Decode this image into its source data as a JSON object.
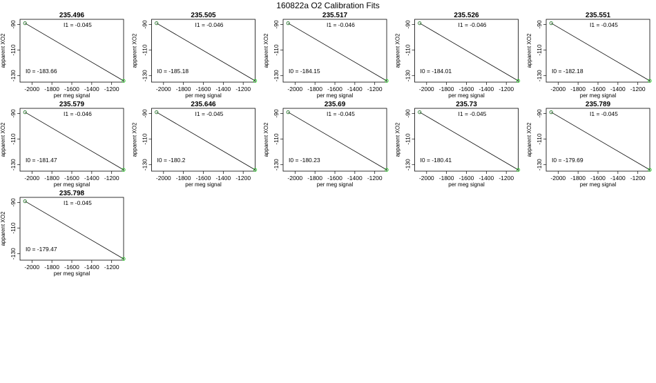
{
  "page_title": "160822a   O2 Calibration Fits",
  "chart_data": [
    {
      "type": "line",
      "title": "235.496",
      "xlabel": "per meg signal",
      "ylabel": "apparent XO2",
      "i1": "I1 =  -0.045",
      "i0": "I0 =  -183.66",
      "xlim": [
        -2120,
        -1080
      ],
      "ylim": [
        -135,
        -86
      ],
      "xticks": [
        -2000,
        -1800,
        -1600,
        -1400,
        -1200
      ],
      "yticks": [
        -90,
        -110,
        -130
      ],
      "points": [
        [
          -2070,
          -89
        ],
        [
          -1080,
          -134
        ]
      ]
    },
    {
      "type": "line",
      "title": "235.505",
      "xlabel": "per meg signal",
      "ylabel": "apparent XO2",
      "i1": "I1 =  -0.046",
      "i0": "I0 =  -185.18",
      "xlim": [
        -2120,
        -1080
      ],
      "ylim": [
        -135,
        -86
      ],
      "xticks": [
        -2000,
        -1800,
        -1600,
        -1400,
        -1200
      ],
      "yticks": [
        -90,
        -110,
        -130
      ],
      "points": [
        [
          -2070,
          -89
        ],
        [
          -1080,
          -134
        ]
      ]
    },
    {
      "type": "line",
      "title": "235.517",
      "xlabel": "per meg signal",
      "ylabel": "apparent XO2",
      "i1": "I1 =  -0.046",
      "i0": "I0 =  -184.15",
      "xlim": [
        -2120,
        -1080
      ],
      "ylim": [
        -135,
        -86
      ],
      "xticks": [
        -2000,
        -1800,
        -1600,
        -1400,
        -1200
      ],
      "yticks": [
        -90,
        -110,
        -130
      ],
      "points": [
        [
          -2070,
          -89
        ],
        [
          -1080,
          -134
        ]
      ]
    },
    {
      "type": "line",
      "title": "235.526",
      "xlabel": "per meg signal",
      "ylabel": "apparent XO2",
      "i1": "I1 =  -0.046",
      "i0": "I0 =  -184.01",
      "xlim": [
        -2120,
        -1080
      ],
      "ylim": [
        -135,
        -86
      ],
      "xticks": [
        -2000,
        -1800,
        -1600,
        -1400,
        -1200
      ],
      "yticks": [
        -90,
        -110,
        -130
      ],
      "points": [
        [
          -2070,
          -89
        ],
        [
          -1080,
          -134
        ]
      ]
    },
    {
      "type": "line",
      "title": "235.551",
      "xlabel": "per meg signal",
      "ylabel": "apparent XO2",
      "i1": "I1 =  -0.045",
      "i0": "I0 =  -182.18",
      "xlim": [
        -2120,
        -1080
      ],
      "ylim": [
        -135,
        -86
      ],
      "xticks": [
        -2000,
        -1800,
        -1600,
        -1400,
        -1200
      ],
      "yticks": [
        -90,
        -110,
        -130
      ],
      "points": [
        [
          -2070,
          -89
        ],
        [
          -1080,
          -134
        ]
      ]
    },
    {
      "type": "line",
      "title": "235.579",
      "xlabel": "per meg signal",
      "ylabel": "apparent XO2",
      "i1": "I1 =  -0.046",
      "i0": "I0 =  -181.47",
      "xlim": [
        -2120,
        -1080
      ],
      "ylim": [
        -135,
        -86
      ],
      "xticks": [
        -2000,
        -1800,
        -1600,
        -1400,
        -1200
      ],
      "yticks": [
        -90,
        -110,
        -130
      ],
      "points": [
        [
          -2070,
          -89
        ],
        [
          -1080,
          -134
        ]
      ]
    },
    {
      "type": "line",
      "title": "235.646",
      "xlabel": "per meg signal",
      "ylabel": "apparent XO2",
      "i1": "I1 =  -0.045",
      "i0": "I0 =  -180.2",
      "xlim": [
        -2120,
        -1080
      ],
      "ylim": [
        -135,
        -86
      ],
      "xticks": [
        -2000,
        -1800,
        -1600,
        -1400,
        -1200
      ],
      "yticks": [
        -90,
        -110,
        -130
      ],
      "points": [
        [
          -2070,
          -89
        ],
        [
          -1080,
          -134
        ]
      ]
    },
    {
      "type": "line",
      "title": "235.69",
      "xlabel": "per meg signal",
      "ylabel": "apparent XO2",
      "i1": "I1 =  -0.045",
      "i0": "I0 =  -180.23",
      "xlim": [
        -2120,
        -1080
      ],
      "ylim": [
        -135,
        -86
      ],
      "xticks": [
        -2000,
        -1800,
        -1600,
        -1400,
        -1200
      ],
      "yticks": [
        -90,
        -110,
        -130
      ],
      "points": [
        [
          -2070,
          -89
        ],
        [
          -1080,
          -134
        ]
      ]
    },
    {
      "type": "line",
      "title": "235.73",
      "xlabel": "per meg signal",
      "ylabel": "apparent XO2",
      "i1": "I1 =  -0.045",
      "i0": "I0 =  -180.41",
      "xlim": [
        -2120,
        -1080
      ],
      "ylim": [
        -135,
        -86
      ],
      "xticks": [
        -2000,
        -1800,
        -1600,
        -1400,
        -1200
      ],
      "yticks": [
        -90,
        -110,
        -130
      ],
      "points": [
        [
          -2070,
          -89
        ],
        [
          -1080,
          -134
        ]
      ]
    },
    {
      "type": "line",
      "title": "235.789",
      "xlabel": "per meg signal",
      "ylabel": "apparent XO2",
      "i1": "I1 =  -0.045",
      "i0": "I0 =  -179.69",
      "xlim": [
        -2120,
        -1080
      ],
      "ylim": [
        -135,
        -86
      ],
      "xticks": [
        -2000,
        -1800,
        -1600,
        -1400,
        -1200
      ],
      "yticks": [
        -90,
        -110,
        -130
      ],
      "points": [
        [
          -2070,
          -89
        ],
        [
          -1080,
          -134
        ]
      ]
    },
    {
      "type": "line",
      "title": "235.798",
      "xlabel": "per meg signal",
      "ylabel": "apparent XO2",
      "i1": "I1 =  -0.045",
      "i0": "I0 =  -179.47",
      "xlim": [
        -2120,
        -1080
      ],
      "ylim": [
        -135,
        -86
      ],
      "xticks": [
        -2000,
        -1800,
        -1600,
        -1400,
        -1200
      ],
      "yticks": [
        -90,
        -110,
        -130
      ],
      "points": [
        [
          -2070,
          -89
        ],
        [
          -1080,
          -134
        ]
      ]
    }
  ],
  "colors": {
    "line": "#000000",
    "start_marker": "#2e7d32",
    "end_marker": "#22cc22",
    "frame": "#000000"
  }
}
